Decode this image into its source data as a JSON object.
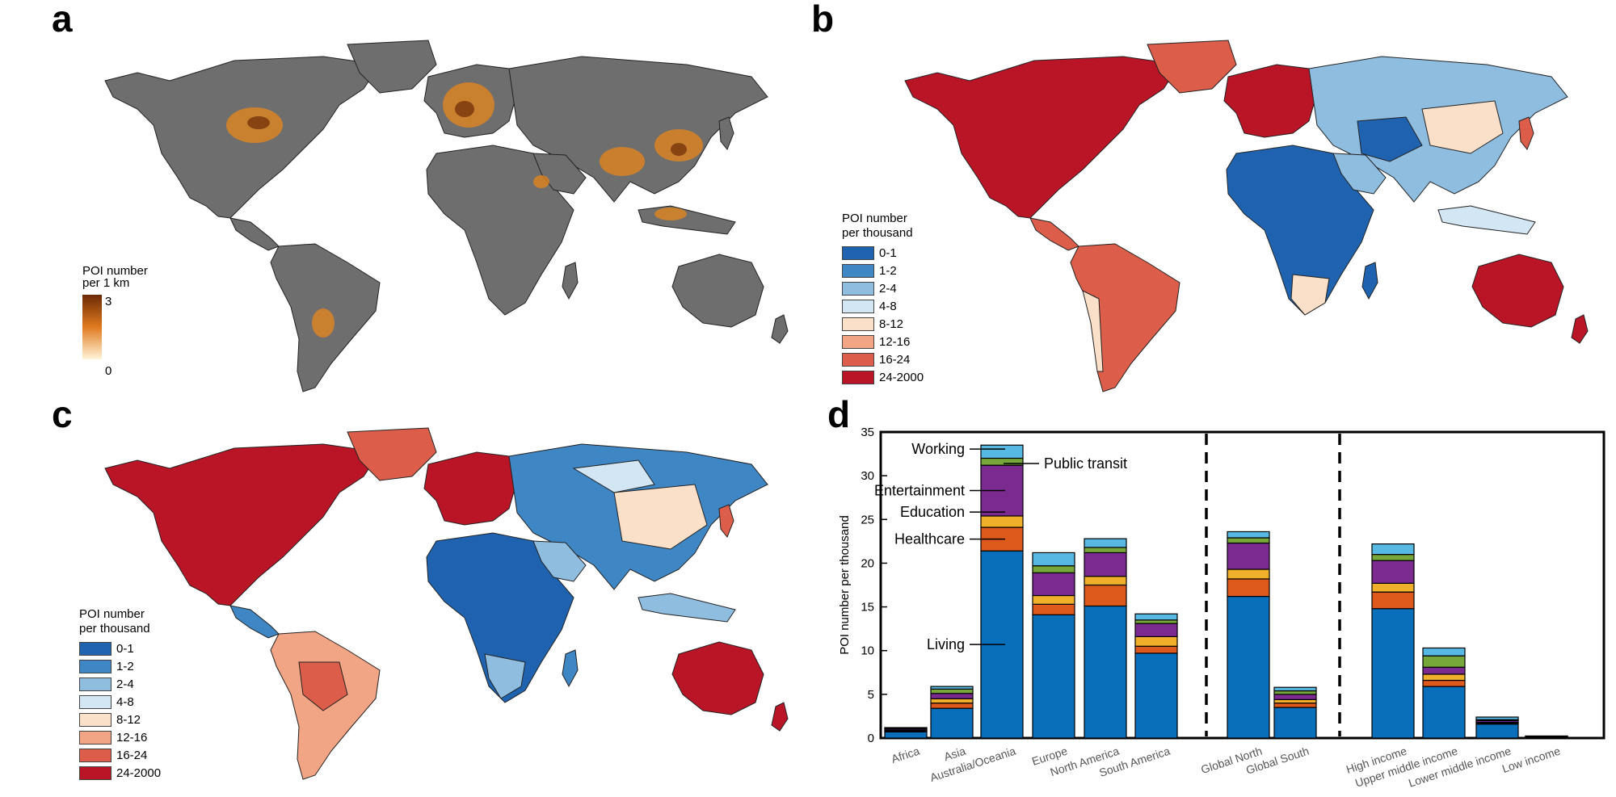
{
  "panels": {
    "a": "a",
    "b": "b",
    "c": "c",
    "d": "d"
  },
  "panel_a": {
    "legend_title_1": "POI number",
    "legend_title_2": "per 1 km",
    "legend_max": "3",
    "legend_min": "0",
    "colors": {
      "land": "#6e6e6e",
      "poi_low": "#fff5d9",
      "poi_mid": "#e07a1f",
      "poi_high": "#6b2a05"
    }
  },
  "legend_bins": {
    "title_1": "POI number",
    "title_2": "per thousand",
    "items": [
      {
        "label": "0-1",
        "color": "#1f63b0"
      },
      {
        "label": "1-2",
        "color": "#3f86c4"
      },
      {
        "label": "2-4",
        "color": "#8fbde0"
      },
      {
        "label": "4-8",
        "color": "#d3e6f4"
      },
      {
        "label": "8-12",
        "color": "#fbe0c9"
      },
      {
        "label": "12-16",
        "color": "#f2a585"
      },
      {
        "label": "16-24",
        "color": "#dc5e4a"
      },
      {
        "label": "24-2000",
        "color": "#b91527"
      }
    ]
  },
  "chart_data": {
    "type": "bar",
    "stacked": true,
    "ylabel": "POI number per thousand",
    "ylim": [
      0,
      35
    ],
    "yticks": [
      0,
      5,
      10,
      15,
      20,
      25,
      30,
      35
    ],
    "categories": [
      "Africa",
      "Asia",
      "Australia/Oceania",
      "Europe",
      "North America",
      "South America",
      "Global North",
      "Global South",
      "High income",
      "Upper middle income",
      "Lower middle income",
      "Low income"
    ],
    "group_separators_after": [
      "South America",
      "Global South"
    ],
    "series": [
      {
        "name": "Living",
        "color": "#0a6fba",
        "values": [
          0.7,
          3.4,
          21.4,
          14.1,
          15.1,
          9.7,
          16.2,
          3.5,
          14.8,
          5.9,
          1.6,
          0.1
        ]
      },
      {
        "name": "Healthcare",
        "color": "#de5a1c",
        "values": [
          0.1,
          0.6,
          2.7,
          1.2,
          2.4,
          0.8,
          2.0,
          0.5,
          1.9,
          0.7,
          0.1,
          0.02
        ]
      },
      {
        "name": "Education",
        "color": "#f0b02a",
        "values": [
          0.1,
          0.5,
          1.3,
          1.0,
          1.0,
          1.1,
          1.1,
          0.4,
          1.0,
          0.7,
          0.1,
          0.02
        ]
      },
      {
        "name": "Entertainment",
        "color": "#7b2a90",
        "values": [
          0.15,
          0.6,
          5.8,
          2.6,
          2.7,
          1.5,
          3.0,
          0.6,
          2.6,
          0.8,
          0.2,
          0.03
        ]
      },
      {
        "name": "Public transit",
        "color": "#77a63a",
        "values": [
          0.1,
          0.5,
          0.8,
          0.8,
          0.6,
          0.4,
          0.6,
          0.4,
          0.7,
          1.3,
          0.1,
          0.02
        ]
      },
      {
        "name": "Working",
        "color": "#57b8e3",
        "values": [
          0.05,
          0.3,
          1.5,
          1.5,
          1.0,
          0.7,
          0.7,
          0.4,
          1.2,
          0.9,
          0.3,
          0.05
        ]
      }
    ],
    "annotations": [
      {
        "text": "Working",
        "series": "Working"
      },
      {
        "text": "Public transit",
        "series": "Public transit"
      },
      {
        "text": "Entertainment",
        "series": "Entertainment"
      },
      {
        "text": "Education",
        "series": "Education"
      },
      {
        "text": "Healthcare",
        "series": "Healthcare"
      },
      {
        "text": "Living",
        "series": "Living"
      }
    ]
  }
}
